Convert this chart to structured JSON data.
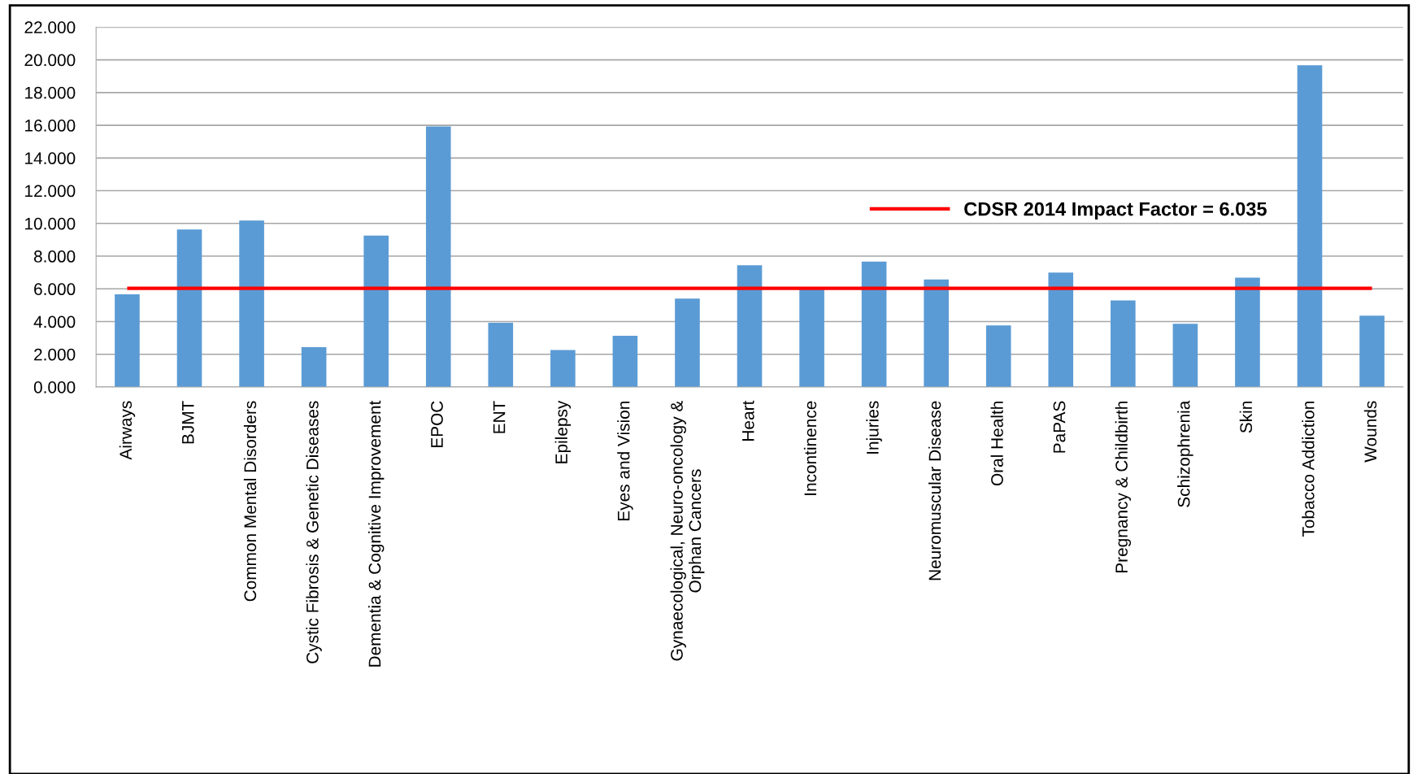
{
  "chart_data": {
    "type": "bar",
    "categories": [
      "Airways",
      "BJMT",
      "Common Mental Disorders",
      "Cystic Fibrosis & Genetic Diseases",
      "Dementia & Cognitive Improvement",
      "EPOC",
      "ENT",
      "Epilepsy",
      "Eyes and Vision",
      "Gynaecological, Neuro-oncology &\nOrphan Cancers",
      "Heart",
      "Incontinence",
      "Injuries",
      "Neuromuscular Disease",
      "Oral Health",
      "PaPAS",
      "Pregnancy & Childbirth",
      "Schizophrenia",
      "Skin",
      "Tobacco Addiction",
      "Wounds"
    ],
    "values": [
      5.66,
      9.63,
      10.17,
      2.43,
      9.26,
      15.93,
      3.92,
      2.26,
      3.13,
      5.41,
      7.44,
      6.01,
      7.67,
      6.57,
      3.76,
      6.99,
      5.29,
      3.86,
      6.69,
      19.67,
      4.36
    ],
    "color": "#5b9bd5",
    "ylim": [
      0,
      22
    ],
    "yticks": [
      {
        "value": 0,
        "label": "0.000"
      },
      {
        "value": 2,
        "label": "2.000"
      },
      {
        "value": 4,
        "label": "4.000"
      },
      {
        "value": 6,
        "label": "6.000"
      },
      {
        "value": 8,
        "label": "8.000"
      },
      {
        "value": 10,
        "label": "10.000"
      },
      {
        "value": 12,
        "label": "12.000"
      },
      {
        "value": 14,
        "label": "14.000"
      },
      {
        "value": 16,
        "label": "16.000"
      },
      {
        "value": 18,
        "label": "18.000"
      },
      {
        "value": 20,
        "label": "20.000"
      },
      {
        "value": 22,
        "label": "22.000"
      }
    ],
    "grid": "y",
    "ref_lines": [
      {
        "axis": "y",
        "value": 6.035,
        "label": "CDSR 2014 Impact Factor = 6.035",
        "color": "#ff0000"
      }
    ],
    "legend": "right"
  }
}
